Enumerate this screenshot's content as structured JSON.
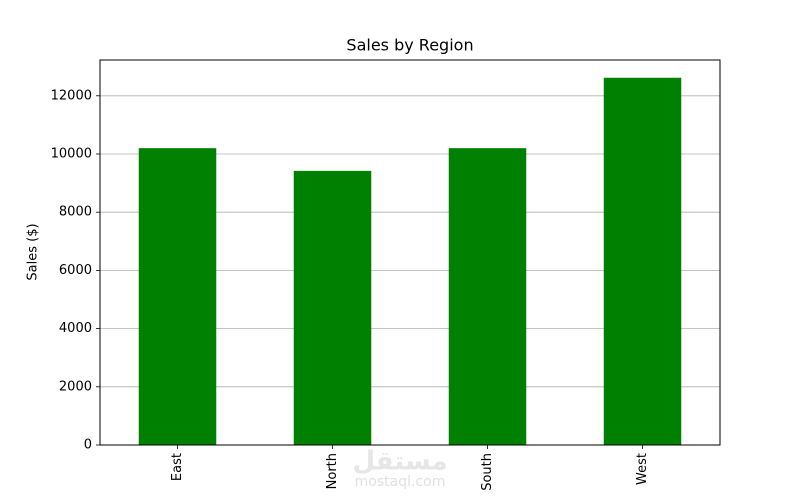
{
  "chart_data": {
    "type": "bar",
    "title": "Sales by Region",
    "y_label": "Sales ($)",
    "categories": [
      "East",
      "North",
      "South",
      "West"
    ],
    "values": [
      10200,
      9420,
      10200,
      12620
    ],
    "color": "#008000",
    "ylim": [
      0,
      13230
    ],
    "yticks": [
      0,
      2000,
      4000,
      6000,
      8000,
      10000,
      12000
    ],
    "grid": true
  },
  "watermark": {
    "arabic": "مستقل",
    "latin": "mostaql.com"
  }
}
